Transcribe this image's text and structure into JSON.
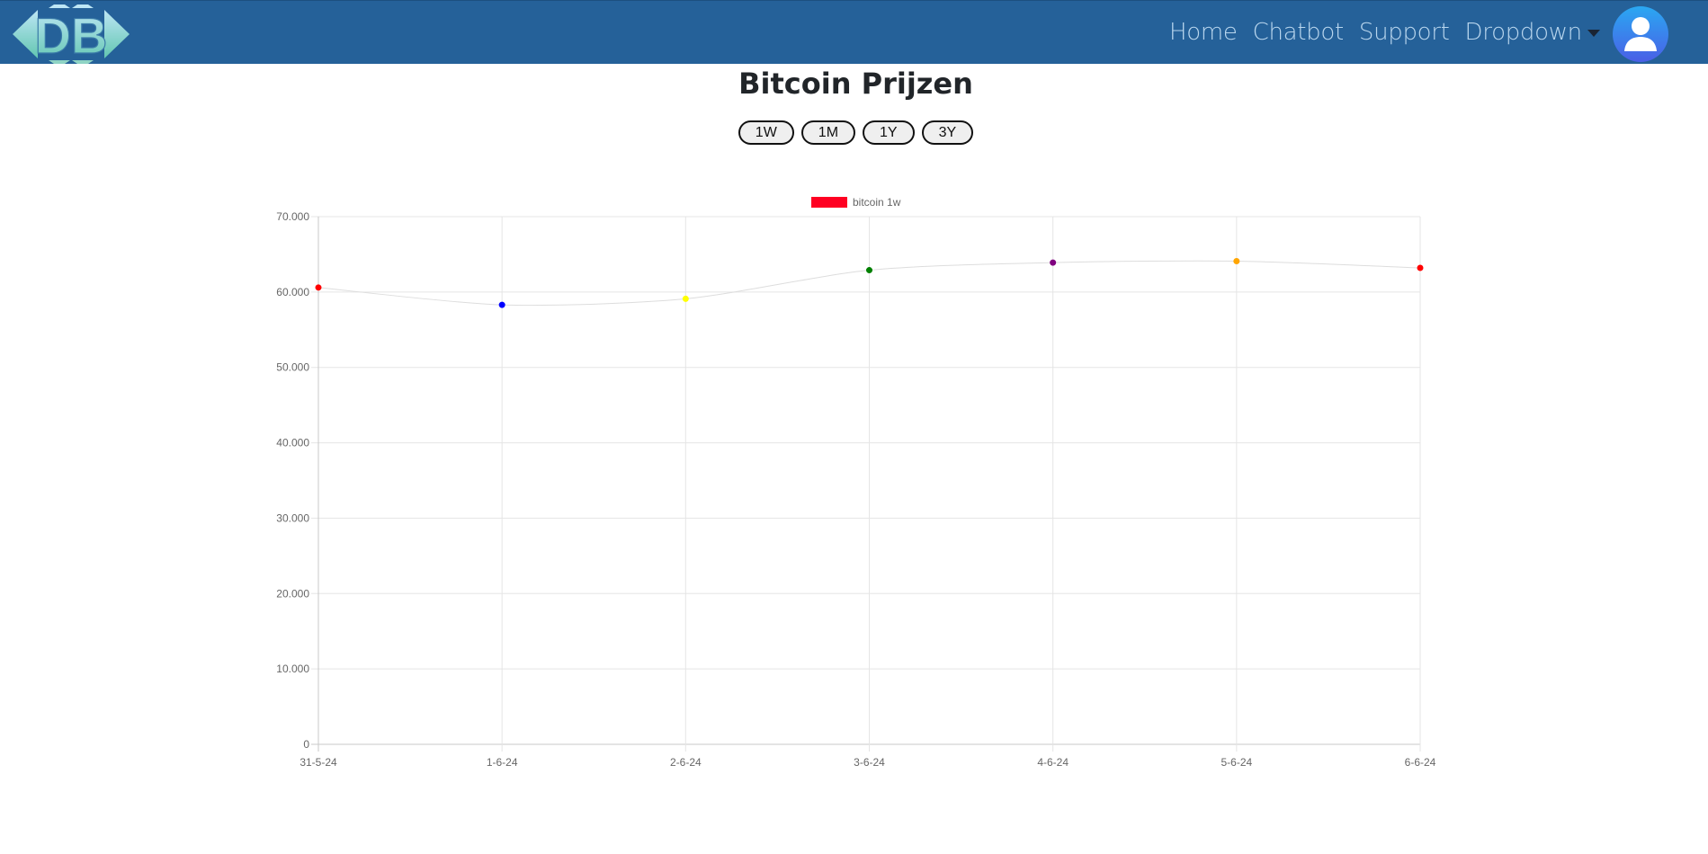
{
  "nav": {
    "logo_text": "DB",
    "links": [
      "Home",
      "Chatbot",
      "Support"
    ],
    "dropdown_label": "Dropdown"
  },
  "page": {
    "title": "Bitcoin Prijzen",
    "range_buttons": [
      "1W",
      "1M",
      "1Y",
      "3Y"
    ]
  },
  "colors": {
    "navbar": "#256199",
    "nav_link": "#b9d6ee",
    "legend_swatch": "#ff0022",
    "line": "#dddddd"
  },
  "chart_data": {
    "type": "line",
    "legend": {
      "label": "bitcoin 1w",
      "position": "top-center"
    },
    "categories": [
      "31-5-24",
      "1-6-24",
      "2-6-24",
      "3-6-24",
      "4-6-24",
      "5-6-24",
      "6-6-24"
    ],
    "series": [
      {
        "name": "bitcoin 1w",
        "values": [
          60600,
          58300,
          59100,
          62900,
          63900,
          64100,
          63200
        ],
        "point_colors": [
          "#ff0000",
          "#0000ff",
          "#ffff00",
          "#008000",
          "#800080",
          "#ffa500",
          "#ff0000"
        ]
      }
    ],
    "ylim": [
      0,
      70000
    ],
    "yticks": [
      "0",
      "10.000",
      "20.000",
      "30.000",
      "40.000",
      "50.000",
      "60.000",
      "70.000"
    ],
    "grid": true
  }
}
